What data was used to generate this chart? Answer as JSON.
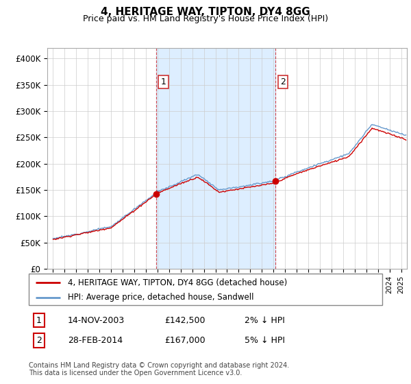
{
  "title": "4, HERITAGE WAY, TIPTON, DY4 8GG",
  "subtitle": "Price paid vs. HM Land Registry's House Price Index (HPI)",
  "ylabel_ticks": [
    "£0",
    "£50K",
    "£100K",
    "£150K",
    "£200K",
    "£250K",
    "£300K",
    "£350K",
    "£400K"
  ],
  "ytick_vals": [
    0,
    50000,
    100000,
    150000,
    200000,
    250000,
    300000,
    350000,
    400000
  ],
  "ylim": [
    0,
    420000
  ],
  "purchase1": {
    "date_num": 2003.875,
    "price": 142500,
    "label": "1"
  },
  "purchase2": {
    "date_num": 2014.16,
    "price": 167000,
    "label": "2"
  },
  "hpi_color": "#6699cc",
  "hpi_fill_color": "#ddeeff",
  "price_color": "#cc0000",
  "vline_color": "#cc0000",
  "bg_color": "#ffffff",
  "grid_color": "#cccccc",
  "legend1_text": "4, HERITAGE WAY, TIPTON, DY4 8GG (detached house)",
  "legend2_text": "HPI: Average price, detached house, Sandwell",
  "annotation1": [
    "1",
    "14-NOV-2003",
    "£142,500",
    "2% ↓ HPI"
  ],
  "annotation2": [
    "2",
    "28-FEB-2014",
    "£167,000",
    "5% ↓ HPI"
  ],
  "footnote": "Contains HM Land Registry data © Crown copyright and database right 2024.\nThis data is licensed under the Open Government Licence v3.0.",
  "xlim_start": 1994.5,
  "xlim_end": 2025.5,
  "hpi_seed": 12,
  "price_seed": 7
}
